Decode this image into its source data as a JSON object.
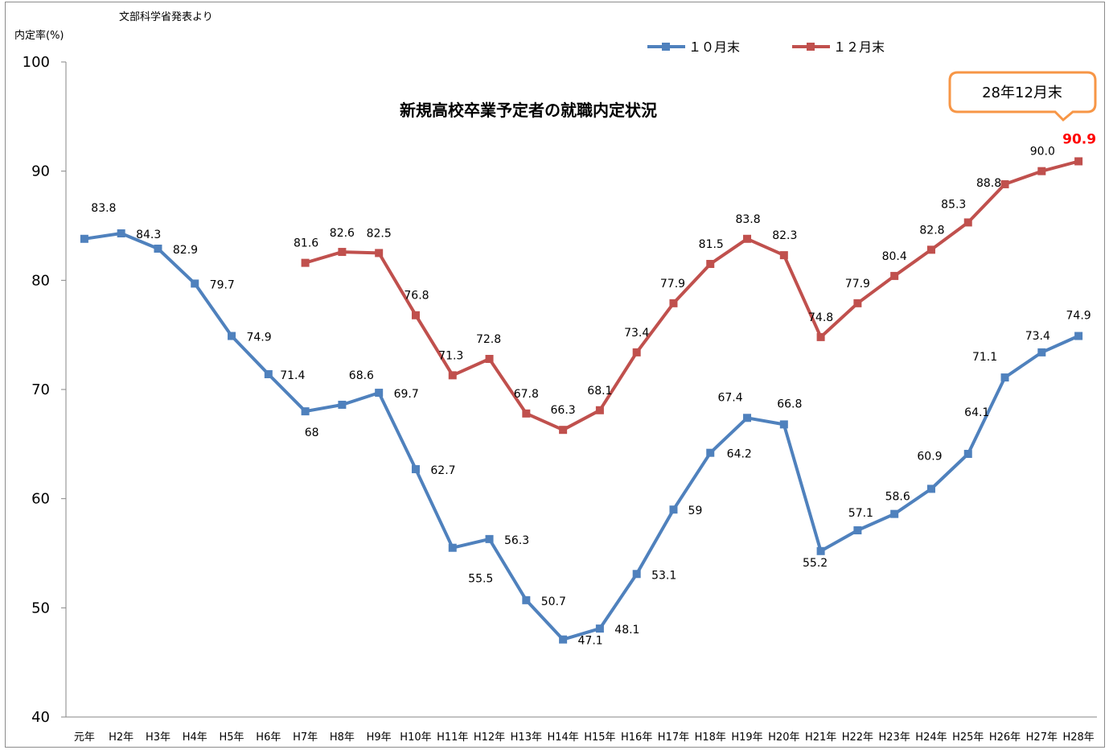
{
  "source_note": "文部科学省発表より",
  "chart_data": {
    "type": "line",
    "title": "新規高校卒業予定者の就職内定状況",
    "xlabel": "",
    "ylabel": "内定率(%)",
    "ylim": [
      40,
      100
    ],
    "yticks": [
      40,
      50,
      60,
      70,
      80,
      90,
      100
    ],
    "grid": false,
    "legend": "top-right",
    "categories": [
      "元年",
      "H2年",
      "H3年",
      "H4年",
      "H5年",
      "H6年",
      "H7年",
      "H8年",
      "H9年",
      "H10年",
      "H11年",
      "H12年",
      "H13年",
      "H14年",
      "H15年",
      "H16年",
      "H17年",
      "H18年",
      "H19年",
      "H20年",
      "H21年",
      "H22年",
      "H23年",
      "H24年",
      "H25年",
      "H26年",
      "H27年",
      "H28年"
    ],
    "series": [
      {
        "name": "１０月末",
        "color": "#4F81BD",
        "values": [
          83.8,
          84.3,
          82.9,
          79.7,
          74.9,
          71.4,
          68,
          68.6,
          69.7,
          62.7,
          55.5,
          56.3,
          50.7,
          47.1,
          48.1,
          53.1,
          59,
          64.2,
          67.4,
          66.8,
          55.2,
          57.1,
          58.6,
          60.9,
          64.1,
          71.1,
          73.4,
          74.9
        ],
        "labels": [
          "83.8",
          "84.3",
          "82.9",
          "79.7",
          "74.9",
          "71.4",
          "68",
          "68.6",
          "69.7",
          "62.7",
          "55.5",
          "56.3",
          "50.7",
          "47.1",
          "48.1",
          "53.1",
          "59",
          "64.2",
          "67.4",
          "66.8",
          "55.2",
          "57.1",
          "58.6",
          "60.9",
          "64.1",
          "71.1",
          "73.4",
          "74.9"
        ]
      },
      {
        "name": "１２月末",
        "color": "#C0504D",
        "values": [
          null,
          null,
          null,
          null,
          null,
          null,
          81.6,
          82.6,
          82.5,
          76.8,
          71.3,
          72.8,
          67.8,
          66.3,
          68.1,
          73.4,
          77.9,
          81.5,
          83.8,
          82.3,
          74.8,
          77.9,
          80.4,
          82.8,
          85.3,
          88.8,
          90.0,
          90.9
        ],
        "labels": [
          null,
          null,
          null,
          null,
          null,
          null,
          "81.6",
          "82.6",
          "82.5",
          "76.8",
          "71.3",
          "72.8",
          "67.8",
          "66.3",
          "68.1",
          "73.4",
          "77.9",
          "81.5",
          "83.8",
          "82.3",
          "74.8",
          "77.9",
          "80.4",
          "82.8",
          "85.3",
          "88.8",
          "90.0",
          "90.9"
        ],
        "highlight": {
          "category": "H28年",
          "color": "#FF0000"
        }
      }
    ],
    "annotation": {
      "text": "28年12月末",
      "border_color": "#F79646"
    }
  }
}
